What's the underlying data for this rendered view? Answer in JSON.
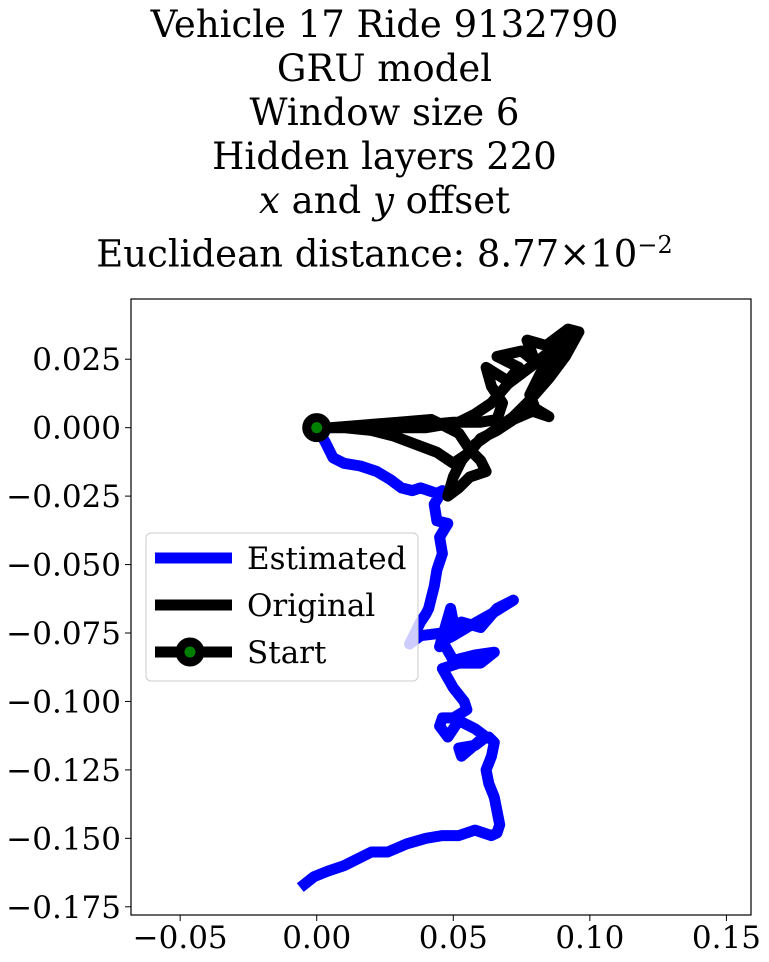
{
  "title_lines": [
    "Vehicle 17 Ride 9132790",
    "GRU model",
    "Window size 6",
    "Hidden layers 220"
  ],
  "title_offset": {
    "var_x": "x",
    "and": "and",
    "var_y": "y",
    "rest": "offset"
  },
  "title_distance": {
    "prefix": "Euclidean distance: ",
    "mantissa": "8.77",
    "times": "×",
    "base": "10",
    "exponent": "−2"
  },
  "chart_data": {
    "type": "line",
    "title": "Vehicle 17 Ride 9132790 GRU model Window size 6 Hidden layers 220 x and y offset Euclidean distance: 8.77×10^−2",
    "xlabel": "",
    "ylabel": "",
    "xlim": [
      -0.068,
      0.159
    ],
    "ylim": [
      -0.178,
      0.047
    ],
    "xticks": [
      -0.05,
      0.0,
      0.05,
      0.1,
      0.15
    ],
    "xtick_labels": [
      "−0.05",
      "0.00",
      "0.05",
      "0.10",
      "0.15"
    ],
    "yticks": [
      0.025,
      0.0,
      -0.025,
      -0.05,
      -0.075,
      -0.1,
      -0.125,
      -0.15,
      -0.175
    ],
    "ytick_labels": [
      "0.025",
      "0.000",
      "−0.025",
      "−0.050",
      "−0.075",
      "−0.100",
      "−0.125",
      "−0.150",
      "−0.175"
    ],
    "grid": false,
    "legend_position": "center-left",
    "series": [
      {
        "name": "Estimated",
        "color": "#0000ff",
        "x": [
          0.0,
          0.003,
          0.006,
          0.01,
          0.016,
          0.022,
          0.027,
          0.031,
          0.035,
          0.038,
          0.041,
          0.044,
          0.046,
          0.043,
          0.044,
          0.048,
          0.045,
          0.046,
          0.044,
          0.043,
          0.042,
          0.041,
          0.04,
          0.038,
          0.036,
          0.034,
          0.038,
          0.046,
          0.05,
          0.049,
          0.045,
          0.053,
          0.06,
          0.066,
          0.072,
          0.064,
          0.055,
          0.05,
          0.046,
          0.05,
          0.058,
          0.065,
          0.06,
          0.052,
          0.046,
          0.05,
          0.054,
          0.055,
          0.05,
          0.046,
          0.045,
          0.048,
          0.052,
          0.058,
          0.062,
          0.058,
          0.052,
          0.053,
          0.06,
          0.063,
          0.065,
          0.064,
          0.062,
          0.063,
          0.065,
          0.066,
          0.067,
          0.066,
          0.064,
          0.058,
          0.052,
          0.046,
          0.04,
          0.033,
          0.026,
          0.02,
          0.014,
          0.01,
          0.004,
          -0.001,
          -0.006
        ],
        "y": [
          0.0,
          -0.005,
          -0.011,
          -0.013,
          -0.014,
          -0.016,
          -0.019,
          -0.022,
          -0.023,
          -0.022,
          -0.023,
          -0.024,
          -0.023,
          -0.028,
          -0.034,
          -0.035,
          -0.04,
          -0.046,
          -0.052,
          -0.058,
          -0.062,
          -0.066,
          -0.068,
          -0.071,
          -0.075,
          -0.079,
          -0.076,
          -0.075,
          -0.071,
          -0.066,
          -0.08,
          -0.071,
          -0.073,
          -0.066,
          -0.063,
          -0.068,
          -0.073,
          -0.076,
          -0.078,
          -0.085,
          -0.083,
          -0.082,
          -0.086,
          -0.086,
          -0.088,
          -0.095,
          -0.1,
          -0.103,
          -0.106,
          -0.106,
          -0.109,
          -0.113,
          -0.107,
          -0.11,
          -0.113,
          -0.116,
          -0.117,
          -0.12,
          -0.114,
          -0.113,
          -0.115,
          -0.12,
          -0.125,
          -0.13,
          -0.135,
          -0.14,
          -0.145,
          -0.148,
          -0.149,
          -0.147,
          -0.149,
          -0.149,
          -0.15,
          -0.152,
          -0.155,
          -0.155,
          -0.158,
          -0.16,
          -0.162,
          -0.164,
          -0.168
        ]
      },
      {
        "name": "Original",
        "color": "#000000",
        "x": [
          0.0,
          0.01,
          0.02,
          0.03,
          0.04,
          0.05,
          0.06,
          0.066,
          0.068,
          0.064,
          0.062,
          0.07,
          0.074,
          0.066,
          0.075,
          0.08,
          0.077,
          0.084,
          0.092,
          0.096,
          0.088,
          0.082,
          0.078,
          0.08,
          0.085,
          0.079,
          0.072,
          0.066,
          0.06,
          0.056,
          0.05,
          0.044,
          0.036,
          0.028,
          0.02,
          0.01,
          0.005,
          0.018,
          0.03,
          0.042,
          0.052,
          0.056,
          0.06,
          0.062,
          0.056,
          0.052,
          0.048,
          0.05,
          0.053,
          0.058,
          0.065,
          0.072,
          0.078,
          0.085,
          0.091,
          0.096,
          0.088,
          0.078,
          0.07,
          0.064,
          0.058,
          0.052,
          0.046,
          0.04,
          0.032,
          0.024,
          0.016,
          0.008,
          0.0
        ],
        "y": [
          0.0,
          0.0,
          0.0,
          0.0,
          0.001,
          0.002,
          0.002,
          0.003,
          0.009,
          0.015,
          0.022,
          0.017,
          0.022,
          0.026,
          0.028,
          0.024,
          0.032,
          0.03,
          0.036,
          0.035,
          0.028,
          0.02,
          0.012,
          0.007,
          0.004,
          0.006,
          0.003,
          -0.001,
          -0.004,
          -0.009,
          -0.013,
          -0.009,
          -0.006,
          -0.003,
          -0.001,
          0.0,
          0.0,
          0.001,
          0.002,
          0.003,
          -0.002,
          -0.008,
          -0.012,
          -0.016,
          -0.018,
          -0.022,
          -0.025,
          -0.018,
          -0.012,
          -0.006,
          -0.001,
          0.004,
          0.01,
          0.018,
          0.026,
          0.035,
          0.03,
          0.022,
          0.016,
          0.009,
          0.005,
          0.002,
          0.001,
          0.0,
          0.0,
          0.0,
          0.0,
          0.0,
          0.0
        ]
      }
    ],
    "start": {
      "name": "Start",
      "x": 0.0,
      "y": 0.0,
      "marker_edge": "#000000",
      "marker_face": "#008000"
    }
  }
}
